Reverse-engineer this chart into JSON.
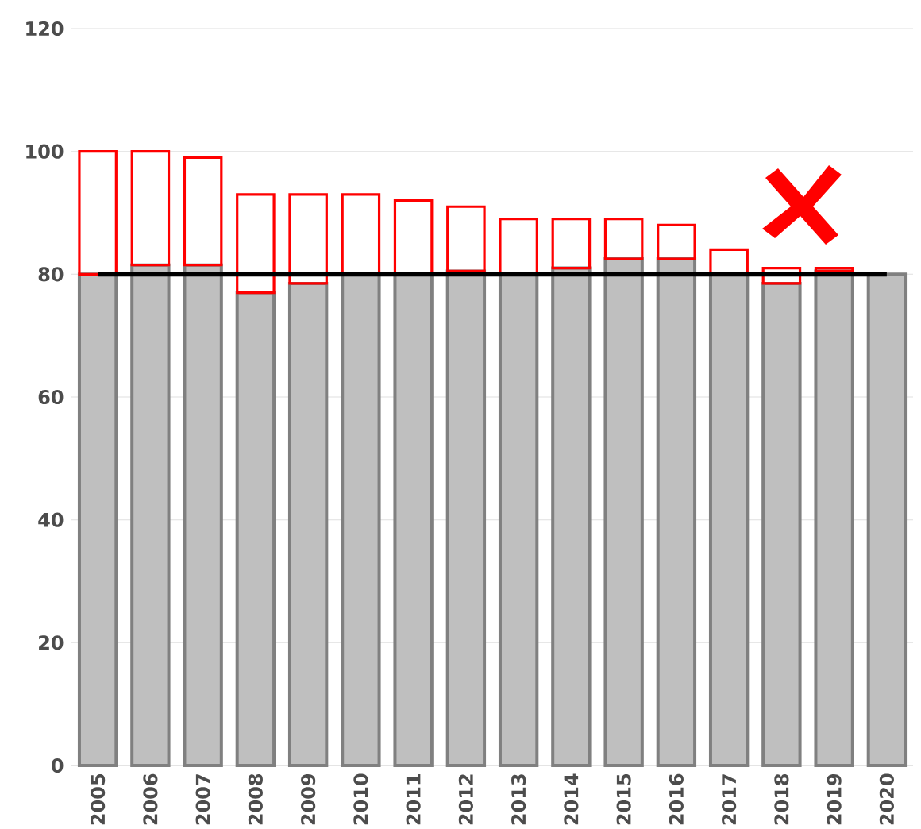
{
  "chart_data": {
    "type": "bar",
    "categories": [
      "2005",
      "2006",
      "2007",
      "2008",
      "2009",
      "2010",
      "2011",
      "2012",
      "2013",
      "2014",
      "2015",
      "2016",
      "2017",
      "2018",
      "2019",
      "2020"
    ],
    "series": [
      {
        "color": "#bfbfbf",
        "values": [
          80,
          81.5,
          81.5,
          77,
          78.5,
          80,
          80,
          80.5,
          80,
          81,
          82.5,
          82.5,
          80,
          78.5,
          80.5,
          80
        ]
      },
      {
        "color": "#ff0000",
        "values": [
          20,
          18.5,
          17.5,
          16,
          14.5,
          13,
          12,
          10.5,
          9,
          8,
          6.5,
          5.5,
          4,
          2.5,
          0.5,
          null
        ],
        "base": [
          80,
          81.5,
          81.5,
          77,
          78.5,
          80,
          80,
          80.5,
          80,
          81,
          82.5,
          82.5,
          80,
          78.5,
          80.5,
          null
        ]
      }
    ],
    "ylim": [
      0,
      120
    ],
    "yticks": [
      0,
      20,
      40,
      60,
      80,
      100,
      120
    ],
    "grid": "y",
    "ref_lines": [
      {
        "axis": "y",
        "value": 80,
        "color": "#000000"
      }
    ]
  }
}
